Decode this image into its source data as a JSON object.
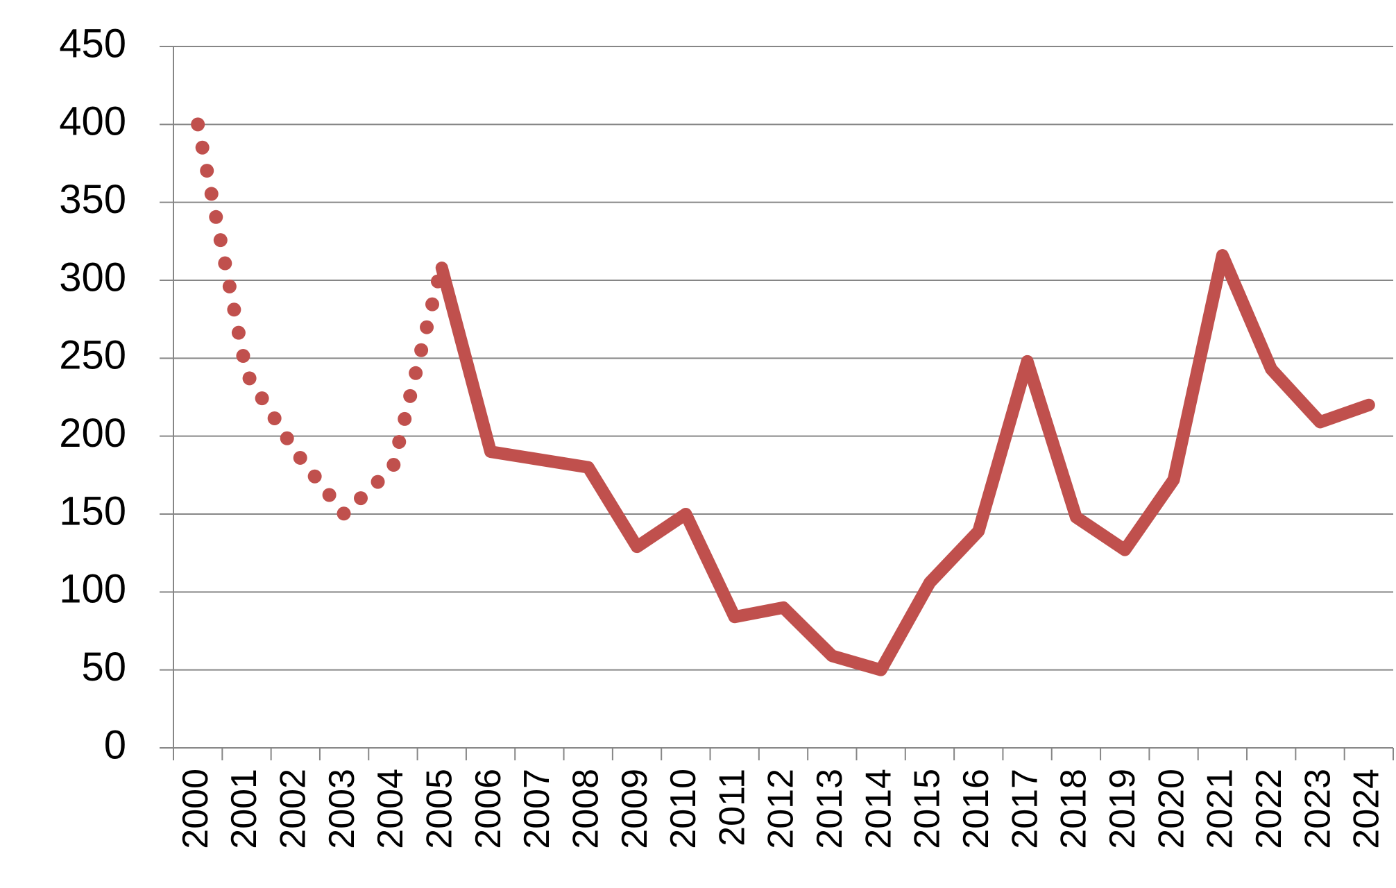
{
  "chart_data": {
    "type": "line",
    "categories": [
      "2000",
      "2001",
      "2002",
      "2003",
      "2004",
      "2005",
      "2006",
      "2007",
      "2008",
      "2009",
      "2010",
      "2011",
      "2012",
      "2013",
      "2014",
      "2015",
      "2016",
      "2017",
      "2018",
      "2019",
      "2020",
      "2021",
      "2022",
      "2023",
      "2024"
    ],
    "series": [
      {
        "color": "#c0504d",
        "dash": "dotted",
        "values": [
          400,
          240,
          190,
          150,
          180,
          310,
          null,
          null,
          null,
          null,
          null,
          null,
          null,
          null,
          null,
          null,
          null,
          null,
          null,
          null,
          null,
          null,
          null,
          null,
          null
        ]
      },
      {
        "color": "#c0504d",
        "dash": "solid",
        "values": [
          null,
          null,
          null,
          null,
          null,
          308,
          190,
          185,
          180,
          129,
          150,
          84,
          90,
          59,
          50,
          106,
          139,
          248,
          148,
          127,
          172,
          316,
          243,
          209,
          220
        ]
      }
    ],
    "ylim": [
      0,
      450
    ],
    "yticks": [
      0,
      50,
      100,
      150,
      200,
      250,
      300,
      350,
      400,
      450
    ],
    "grid": true
  }
}
